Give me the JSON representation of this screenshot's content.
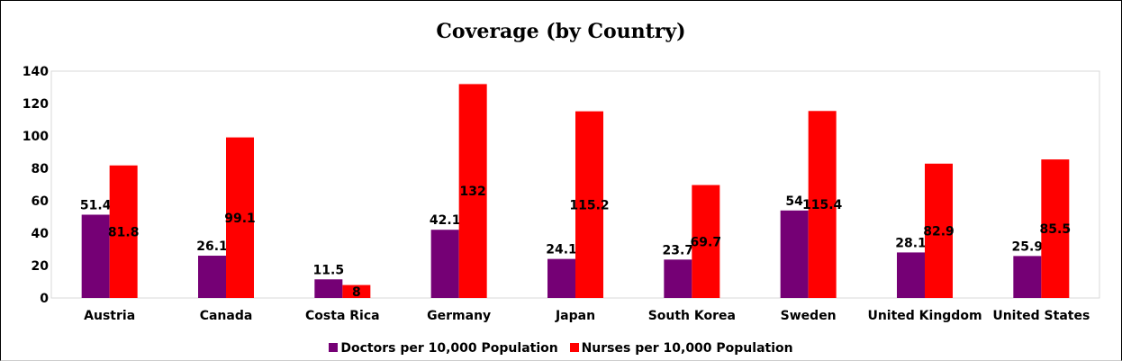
{
  "chart_data": {
    "type": "bar",
    "title": "Coverage (by Country)",
    "xlabel": "",
    "ylabel": "",
    "ylim": [
      0,
      140
    ],
    "yticks": [
      0,
      20,
      40,
      60,
      80,
      100,
      120,
      140
    ],
    "grid": false,
    "legend_position": "bottom",
    "categories": [
      "Austria",
      "Canada",
      "Costa Rica",
      "Germany",
      "Japan",
      "South Korea",
      "Sweden",
      "United Kingdom",
      "United States"
    ],
    "series": [
      {
        "name": "Doctors per 10,000 Population",
        "color": "#750075",
        "values": [
          51.4,
          26.1,
          11.5,
          42.1,
          24.1,
          23.7,
          54,
          28.1,
          25.9
        ]
      },
      {
        "name": "Nurses per 10,000 Population",
        "color": "#ff0000",
        "values": [
          81.8,
          99.1,
          8,
          132,
          115.2,
          69.7,
          115.4,
          82.9,
          85.5
        ]
      }
    ]
  }
}
